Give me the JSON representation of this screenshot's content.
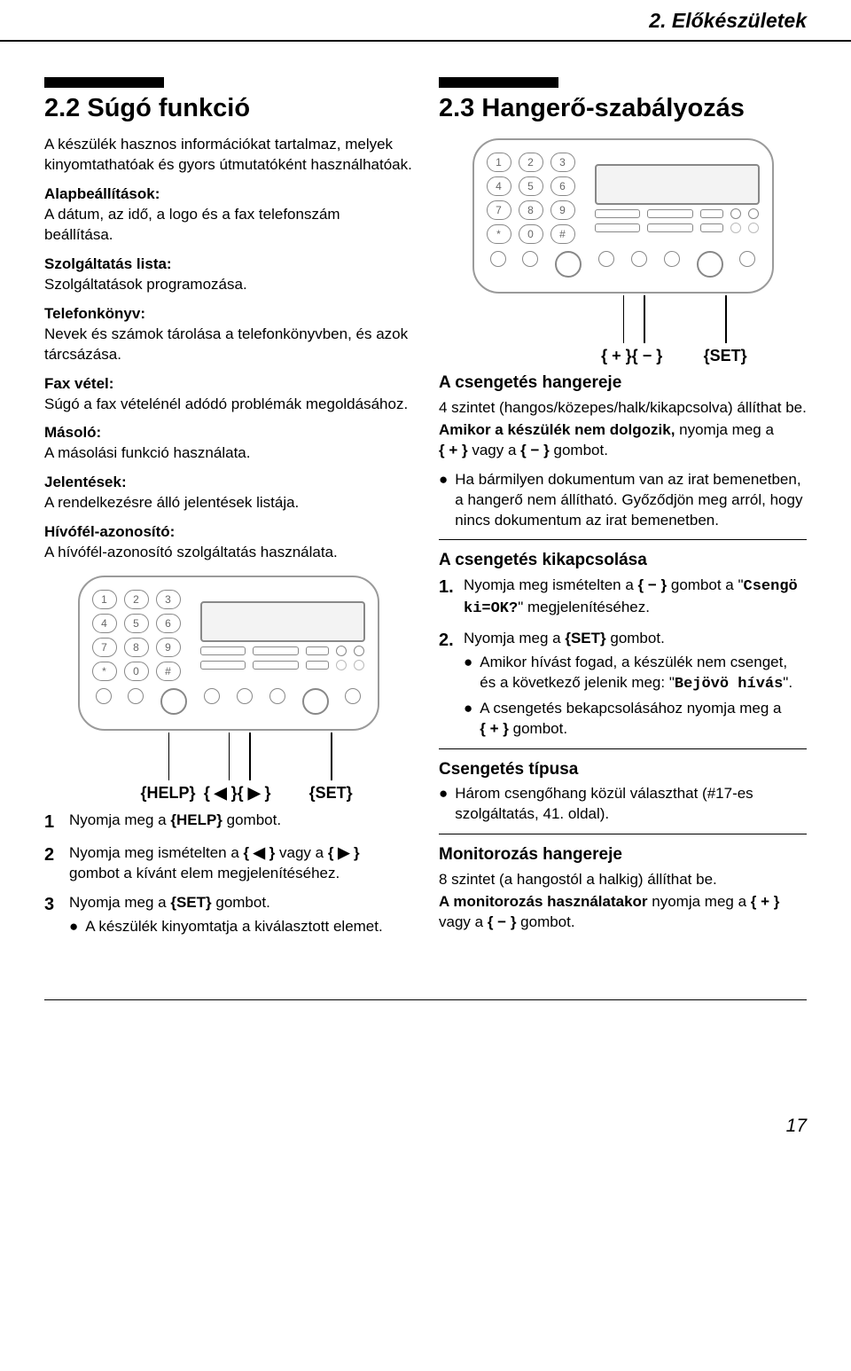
{
  "header": {
    "chapter": "2. Előkészületek"
  },
  "left": {
    "title": "2.2 Súgó funkció",
    "intro": "A készülék hasznos információkat tartalmaz, melyek kinyomtathatóak és gyors útmutatóként használhatóak.",
    "items": [
      {
        "label": "Alapbeállítások:",
        "text": "A dátum, az idő, a logo és a fax telefonszám beállítása."
      },
      {
        "label": "Szolgáltatás lista:",
        "text": "Szolgáltatások programozása."
      },
      {
        "label": "Telefonkönyv:",
        "text": "Nevek és számok tárolása a telefonkönyvben, és azok tárcsázása."
      },
      {
        "label": "Fax vétel:",
        "text": "Súgó a fax vételénél adódó problémák megoldásához."
      },
      {
        "label": "Másoló:",
        "text": "A másolási funkció használata."
      },
      {
        "label": "Jelentések:",
        "text": "A rendelkezésre álló jelentések listája."
      },
      {
        "label": "Hívófél-azonosító:",
        "text": "A hívófél-azonosító szolgáltatás használata."
      }
    ],
    "diagramLabels": {
      "help": "HELP",
      "left": "◀",
      "right": "▶",
      "set": "SET"
    },
    "steps": [
      {
        "n": "1",
        "text_pre": "Nyomja meg a ",
        "key": "HELP",
        "text_post": " gombot."
      },
      {
        "n": "2",
        "text_pre": "Nyomja meg ismételten a ",
        "key": "◀",
        "mid": " vagy a ",
        "key2": "▶",
        "text_post": " gombot a kívánt elem megjelenítéséhez."
      },
      {
        "n": "3",
        "text_pre": "Nyomja meg a ",
        "key": "SET",
        "text_post": " gombot.",
        "bullet": "A készülék kinyomtatja a kiválasztott elemet."
      }
    ]
  },
  "right": {
    "title": "2.3 Hangerő-szabályozás",
    "diagramLabels": {
      "plus": "+",
      "minus": "−",
      "set": "SET"
    },
    "ringer": {
      "heading": "A csengetés hangereje",
      "line1_pre": "4 szintet (hangos/közepes/halk/kikapcsolva) állíthat be.",
      "line2_bold": "Amikor a készülék nem dolgozik,",
      "line2_rest_a": " nyomja meg a ",
      "line2_key1": "+",
      "line2_mid": " vagy a ",
      "line2_key2": "−",
      "line2_end": " gombot.",
      "bullet": "Ha bármilyen dokumentum van az irat bemenetben, a hangerő nem állítható. Győződjön meg arról, hogy nincs dokumentum az irat bemenetben."
    },
    "off": {
      "heading": "A csengetés kikapcsolása",
      "step1_pre": "Nyomja meg ismételten a ",
      "step1_key": "−",
      "step1_mid": " gombot a \"",
      "step1_code": "Csengö ki=OK?",
      "step1_end": "\" megjelenítéséhez.",
      "step2_pre": "Nyomja meg a ",
      "step2_key": "SET",
      "step2_end": " gombot.",
      "b1_pre": "Amikor hívást fogad, a készülék nem csenget, és a következő jelenik meg: \"",
      "b1_code": "Bejövö hívás",
      "b1_end": "\".",
      "b2_pre": "A csengetés bekapcsolásához nyomja meg a ",
      "b2_key": "+",
      "b2_end": " gombot."
    },
    "type": {
      "heading": "Csengetés típusa",
      "bullet": "Három csengőhang közül választhat (#17-es szolgáltatás, 41. oldal)."
    },
    "monitor": {
      "heading": "Monitorozás hangereje",
      "line1": "8 szintet (a hangostól a halkig) állíthat be.",
      "line2_bold": "A monitorozás használatakor",
      "line2_rest_a": " nyomja meg a ",
      "line2_key1": "+",
      "line2_mid": " vagy a ",
      "line2_key2": "−",
      "line2_end": " gombot."
    }
  },
  "page": "17",
  "keypad": [
    "1",
    "2",
    "3",
    "4",
    "5",
    "6",
    "7",
    "8",
    "9",
    "*",
    "0",
    "#"
  ],
  "colors": {
    "text": "#000000",
    "outline": "#9a9a9a"
  }
}
